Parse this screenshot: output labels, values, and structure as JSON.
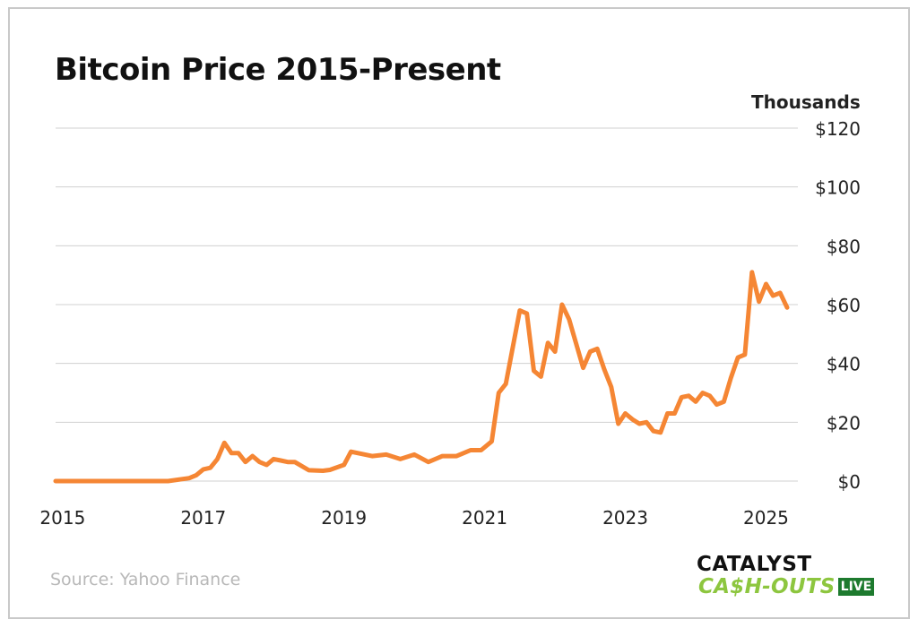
{
  "title": "Bitcoin Price 2015-Present",
  "units_label": "Thousands",
  "source": "Source: Yahoo Finance",
  "logo": {
    "line1": "CATALYST",
    "line2": "CA$H-OUTS",
    "badge": "LIVE"
  },
  "colors": {
    "line": "#f58634",
    "grid": "#d0d0d0",
    "text": "#222222",
    "logo_green": "#8dc63f",
    "logo_badge": "#1d7a2e"
  },
  "chart_data": {
    "type": "line",
    "title": "Bitcoin Price 2015-Present",
    "ylabel": "Thousands",
    "ylim": [
      0,
      120
    ],
    "xlim": [
      2014.9,
      2025.3
    ],
    "yticks": [
      0,
      20,
      40,
      60,
      80,
      100,
      120
    ],
    "ytick_labels": [
      "$0",
      "$20",
      "$40",
      "$60",
      "$80",
      "$100",
      "$120"
    ],
    "xticks": [
      2015,
      2017,
      2019,
      2021,
      2023,
      2025
    ],
    "xtick_labels": [
      "2015",
      "2017",
      "2019",
      "2021",
      "2023",
      "2025"
    ],
    "grid": true,
    "series": [
      {
        "x": [
          2014.9,
          2016.5,
          2016.8,
          2016.9,
          2017.0,
          2017.1,
          2017.2,
          2017.3,
          2017.4,
          2017.5,
          2017.6,
          2017.7,
          2017.8,
          2017.9,
          2018.0,
          2018.1,
          2018.2,
          2018.3,
          2018.5,
          2018.7,
          2018.8,
          2019.0,
          2019.1,
          2019.2,
          2019.4,
          2019.6,
          2019.8,
          2020.0,
          2020.2,
          2020.4,
          2020.6,
          2020.8,
          2020.95,
          2021.1,
          2021.2,
          2021.3,
          2021.5,
          2021.6,
          2021.7,
          2021.8,
          2021.9,
          2022.0,
          2022.1,
          2022.2,
          2022.4,
          2022.5,
          2022.6,
          2022.7,
          2022.8,
          2022.9,
          2023.0,
          2023.1,
          2023.2,
          2023.3,
          2023.4,
          2023.5,
          2023.6,
          2023.7,
          2023.8,
          2023.9,
          2024.0,
          2024.1,
          2024.2,
          2024.3,
          2024.4,
          2024.5,
          2024.6,
          2024.7,
          2024.8,
          2024.9,
          2025.0,
          2025.1,
          2025.2,
          2025.3
        ],
        "y": [
          0,
          0,
          1.0,
          2.0,
          4.0,
          4.5,
          7.5,
          13.0,
          9.5,
          9.5,
          6.5,
          8.5,
          6.5,
          5.5,
          7.5,
          7.0,
          6.5,
          6.5,
          3.7,
          3.5,
          3.8,
          5.5,
          10.0,
          9.5,
          8.5,
          9.0,
          7.5,
          9.0,
          6.5,
          8.5,
          8.5,
          10.5,
          10.5,
          13.5,
          30.0,
          33.0,
          58.0,
          57.0,
          37.5,
          35.5,
          47.0,
          44.0,
          60.0,
          55.0,
          38.5,
          44.0,
          45.0,
          38.0,
          32.0,
          19.5,
          23.0,
          21.0,
          19.5,
          20.0,
          17.0,
          16.5,
          23.0,
          23.0,
          28.5,
          29.0,
          27.0,
          30.0,
          29.0,
          26.0,
          27.0,
          35.0,
          42.0,
          43.0,
          71.0,
          61.0,
          67.0,
          63.0,
          64.0,
          59.0
        ]
      }
    ]
  }
}
